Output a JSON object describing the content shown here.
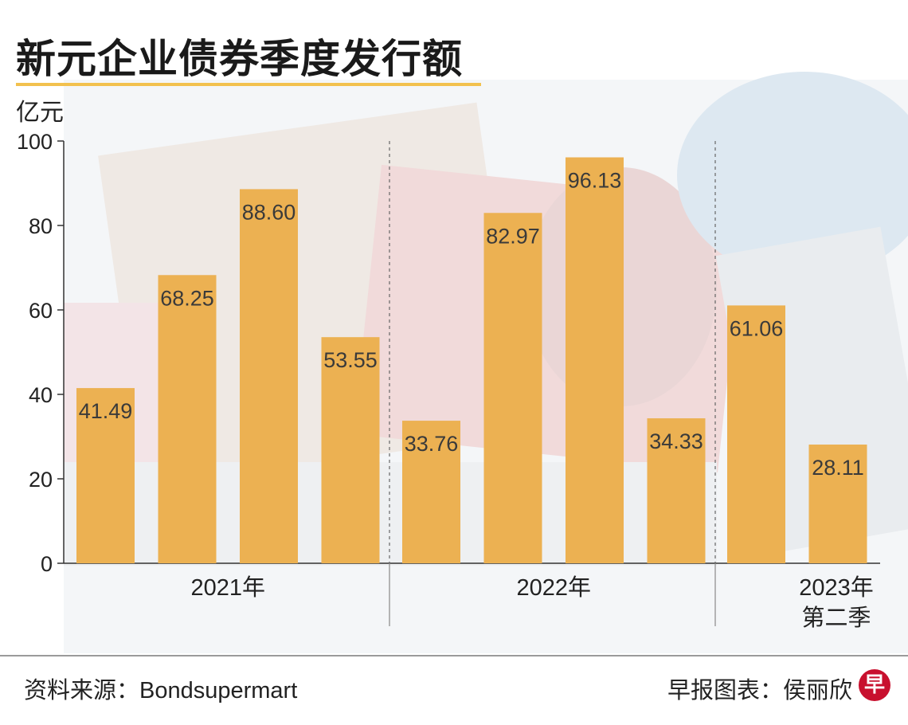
{
  "title": "新元企业债券季度发行额",
  "unit_label": "亿元",
  "colors": {
    "bar": "#ecb152",
    "title_rule": "#f2c14e",
    "logo": "#c8102e"
  },
  "chart_data": {
    "type": "bar",
    "title": "新元企业债券季度发行额",
    "ylabel": "亿元",
    "ylim": [
      0,
      100
    ],
    "yticks": [
      0,
      20,
      40,
      60,
      80,
      100
    ],
    "grid": false,
    "groups": [
      {
        "label": "2021年",
        "values": [
          41.49,
          68.25,
          88.6,
          53.55
        ],
        "value_labels": [
          "41.49",
          "68.25",
          "88.60",
          "53.55"
        ]
      },
      {
        "label": "2022年",
        "values": [
          33.76,
          82.97,
          96.13,
          34.33
        ],
        "value_labels": [
          "33.76",
          "82.97",
          "96.13",
          "34.33"
        ]
      },
      {
        "label": "2023年\n第二季",
        "values": [
          61.06,
          28.11
        ],
        "value_labels": [
          "61.06",
          "28.11"
        ]
      }
    ]
  },
  "footer": {
    "source": "资料来源：Bondsupermart",
    "credit": "早报图表：侯丽欣",
    "logo_char": "早"
  }
}
